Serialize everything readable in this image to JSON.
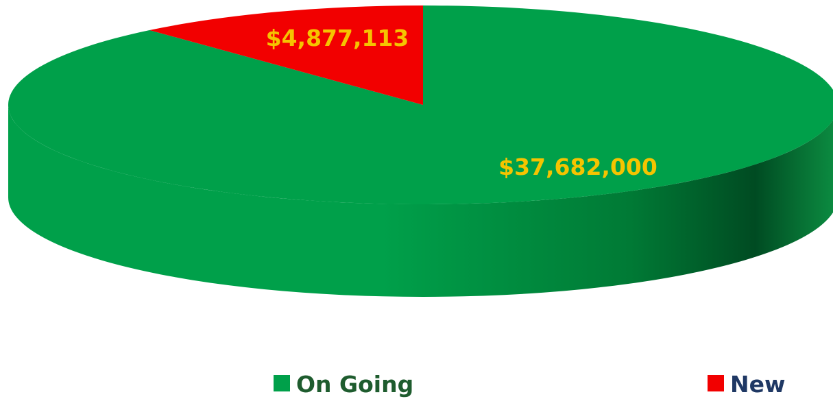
{
  "chart_data": {
    "type": "pie",
    "style": "3d",
    "slices": [
      {
        "name": "On Going",
        "value": 37682000,
        "label": "$37,682,000",
        "color": "#00A04A"
      },
      {
        "name": "New",
        "value": 4877113,
        "label": "$4,877,113",
        "color": "#F20000"
      }
    ],
    "label_color": "#F5C400",
    "legend": {
      "placement": "bottom",
      "entries": [
        {
          "label": "On Going",
          "color": "#00A04A",
          "text_color": "#1E5C2E"
        },
        {
          "label": "New",
          "color": "#F20000",
          "text_color": "#1F3864"
        }
      ]
    }
  }
}
